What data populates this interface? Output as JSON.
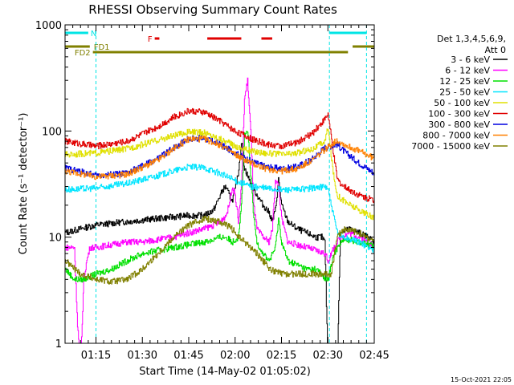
{
  "chart_data": {
    "type": "line",
    "title": "RHESSI Observing Summary Count Rates",
    "xlabel": "Start Time (14-May-02 01:05:02)",
    "ylabel": "Count Rate (s⁻¹ detector⁻¹)",
    "ylog": true,
    "ylim": [
      1,
      1000
    ],
    "xlim_minutes": [
      0,
      100
    ],
    "x_ticks": [
      {
        "label": "01:15",
        "min": 10
      },
      {
        "label": "01:30",
        "min": 25
      },
      {
        "label": "01:45",
        "min": 40
      },
      {
        "label": "02:00",
        "min": 55
      },
      {
        "label": "02:15",
        "min": 70
      },
      {
        "label": "02:30",
        "min": 85
      },
      {
        "label": "02:45",
        "min": 100
      }
    ],
    "y_ticks": [
      {
        "label": "1",
        "v": 1
      },
      {
        "label": "10",
        "v": 10
      },
      {
        "label": "100",
        "v": 100
      },
      {
        "label": "1000",
        "v": 1000
      }
    ],
    "legend_header": [
      "Det 1,3,4,5,6,9,",
      "Att 0"
    ],
    "timestamp": "15-Oct-2021 22:05",
    "night_markers": [
      10,
      85.5,
      97.5
    ],
    "flags": [
      {
        "label": "N",
        "color": "#00e5e5",
        "segments": [
          [
            0,
            7.5
          ],
          [
            85.5,
            97.5
          ]
        ]
      },
      {
        "label": "F",
        "color": "#e00000",
        "segments": [
          [
            29,
            30.5
          ],
          [
            46,
            57
          ],
          [
            63.5,
            67
          ]
        ]
      },
      {
        "label": "FD1",
        "color": "#808000",
        "segments": [
          [
            0,
            8
          ],
          [
            93,
            100
          ]
        ]
      },
      {
        "label": "FD2",
        "color": "#808000",
        "segments": [
          [
            9,
            91.5
          ]
        ]
      }
    ],
    "series": [
      {
        "name": "3 - 6 keV",
        "color": "#000000",
        "points": [
          [
            0,
            11
          ],
          [
            5,
            12
          ],
          [
            10,
            13
          ],
          [
            15,
            13.5
          ],
          [
            20,
            14
          ],
          [
            25,
            14.5
          ],
          [
            30,
            15
          ],
          [
            35,
            15.5
          ],
          [
            40,
            16
          ],
          [
            45,
            16
          ],
          [
            48,
            18
          ],
          [
            51,
            28
          ],
          [
            52,
            30
          ],
          [
            53,
            25
          ],
          [
            54,
            22
          ],
          [
            55,
            28
          ],
          [
            56,
            40
          ],
          [
            57,
            80
          ],
          [
            58,
            45
          ],
          [
            60,
            32
          ],
          [
            62,
            25
          ],
          [
            64,
            20
          ],
          [
            66,
            17
          ],
          [
            67,
            14
          ],
          [
            68,
            18
          ],
          [
            69,
            35
          ],
          [
            70,
            20
          ],
          [
            72,
            14
          ],
          [
            75,
            12
          ],
          [
            78,
            11
          ],
          [
            81,
            10
          ],
          [
            83,
            10
          ],
          [
            84,
            9
          ],
          [
            85,
            0.6
          ],
          [
            86,
            0.5
          ],
          [
            87,
            1.0
          ],
          [
            88,
            0.6
          ],
          [
            89,
            11
          ],
          [
            92,
            12
          ],
          [
            95,
            11
          ],
          [
            98,
            10
          ],
          [
            100,
            9
          ]
        ]
      },
      {
        "name": "6 - 12 keV",
        "color": "#ff00ff",
        "points": [
          [
            0,
            8
          ],
          [
            3,
            8
          ],
          [
            4,
            1.5
          ],
          [
            5,
            0.6
          ],
          [
            6,
            4
          ],
          [
            7,
            6
          ],
          [
            8,
            8
          ],
          [
            10,
            8
          ],
          [
            15,
            8.5
          ],
          [
            20,
            9
          ],
          [
            25,
            9
          ],
          [
            30,
            9.5
          ],
          [
            35,
            10
          ],
          [
            40,
            11
          ],
          [
            45,
            12
          ],
          [
            48,
            13
          ],
          [
            50,
            14
          ],
          [
            52,
            16
          ],
          [
            53,
            20
          ],
          [
            54,
            30
          ],
          [
            55,
            25
          ],
          [
            56,
            14
          ],
          [
            57,
            30
          ],
          [
            58,
            200
          ],
          [
            59,
            300
          ],
          [
            60,
            100
          ],
          [
            61,
            20
          ],
          [
            62,
            12
          ],
          [
            64,
            10
          ],
          [
            66,
            9
          ],
          [
            67,
            12
          ],
          [
            68,
            35
          ],
          [
            69,
            30
          ],
          [
            70,
            15
          ],
          [
            72,
            9
          ],
          [
            75,
            8.5
          ],
          [
            78,
            8
          ],
          [
            81,
            7.5
          ],
          [
            84,
            7
          ],
          [
            85,
            6
          ],
          [
            87,
            8
          ],
          [
            89,
            10
          ],
          [
            92,
            11
          ],
          [
            95,
            10
          ],
          [
            98,
            9
          ],
          [
            100,
            8
          ]
        ]
      },
      {
        "name": "12 - 25 keV",
        "color": "#00e000",
        "points": [
          [
            0,
            5
          ],
          [
            3,
            4
          ],
          [
            6,
            4
          ],
          [
            10,
            4.5
          ],
          [
            15,
            5
          ],
          [
            20,
            6
          ],
          [
            25,
            7
          ],
          [
            30,
            7.5
          ],
          [
            35,
            8
          ],
          [
            40,
            8.5
          ],
          [
            45,
            9
          ],
          [
            48,
            9.5
          ],
          [
            50,
            10
          ],
          [
            52,
            10
          ],
          [
            54,
            9
          ],
          [
            56,
            10
          ],
          [
            57,
            20
          ],
          [
            58,
            90
          ],
          [
            59,
            100
          ],
          [
            60,
            40
          ],
          [
            61,
            15
          ],
          [
            62,
            9
          ],
          [
            64,
            7
          ],
          [
            66,
            6
          ],
          [
            68,
            8
          ],
          [
            69,
            15
          ],
          [
            70,
            9
          ],
          [
            72,
            6
          ],
          [
            75,
            5.5
          ],
          [
            78,
            5
          ],
          [
            81,
            5
          ],
          [
            83,
            4.5
          ],
          [
            84,
            4
          ],
          [
            85,
            4
          ],
          [
            87,
            7
          ],
          [
            89,
            9
          ],
          [
            92,
            9.5
          ],
          [
            95,
            9
          ],
          [
            98,
            8.5
          ],
          [
            100,
            8
          ]
        ]
      },
      {
        "name": "25 - 50 keV",
        "color": "#00e5ff",
        "points": [
          [
            0,
            28
          ],
          [
            10,
            29
          ],
          [
            20,
            32
          ],
          [
            30,
            38
          ],
          [
            35,
            42
          ],
          [
            40,
            46
          ],
          [
            45,
            45
          ],
          [
            50,
            40
          ],
          [
            55,
            34
          ],
          [
            60,
            30
          ],
          [
            65,
            29
          ],
          [
            70,
            28
          ],
          [
            75,
            28
          ],
          [
            80,
            29
          ],
          [
            84,
            30
          ],
          [
            85,
            29
          ],
          [
            86,
            20
          ],
          [
            87,
            15
          ],
          [
            88,
            11
          ],
          [
            90,
            10
          ],
          [
            95,
            9
          ],
          [
            100,
            7.5
          ]
        ]
      },
      {
        "name": "50 - 100 keV",
        "color": "#e0e000",
        "points": [
          [
            0,
            60
          ],
          [
            10,
            62
          ],
          [
            20,
            68
          ],
          [
            30,
            82
          ],
          [
            35,
            90
          ],
          [
            40,
            98
          ],
          [
            45,
            96
          ],
          [
            50,
            85
          ],
          [
            55,
            72
          ],
          [
            60,
            65
          ],
          [
            65,
            62
          ],
          [
            70,
            60
          ],
          [
            75,
            62
          ],
          [
            80,
            68
          ],
          [
            84,
            80
          ],
          [
            85,
            110
          ],
          [
            86,
            60
          ],
          [
            87,
            35
          ],
          [
            88,
            25
          ],
          [
            90,
            22
          ],
          [
            95,
            18
          ],
          [
            100,
            15
          ]
        ]
      },
      {
        "name": "100 - 300 keV",
        "color": "#e00000",
        "points": [
          [
            0,
            80
          ],
          [
            10,
            72
          ],
          [
            20,
            80
          ],
          [
            30,
            110
          ],
          [
            35,
            135
          ],
          [
            40,
            155
          ],
          [
            45,
            150
          ],
          [
            50,
            125
          ],
          [
            55,
            100
          ],
          [
            60,
            85
          ],
          [
            65,
            75
          ],
          [
            70,
            72
          ],
          [
            75,
            78
          ],
          [
            80,
            95
          ],
          [
            84,
            130
          ],
          [
            85,
            145
          ],
          [
            86,
            90
          ],
          [
            87,
            55
          ],
          [
            88,
            35
          ],
          [
            90,
            30
          ],
          [
            95,
            25
          ],
          [
            100,
            22
          ]
        ]
      },
      {
        "name": "300 - 800 keV",
        "color": "#0000e0",
        "points": [
          [
            0,
            45
          ],
          [
            10,
            38
          ],
          [
            20,
            40
          ],
          [
            30,
            55
          ],
          [
            35,
            70
          ],
          [
            40,
            85
          ],
          [
            45,
            85
          ],
          [
            50,
            75
          ],
          [
            55,
            62
          ],
          [
            60,
            52
          ],
          [
            65,
            46
          ],
          [
            70,
            44
          ],
          [
            75,
            46
          ],
          [
            80,
            55
          ],
          [
            84,
            70
          ],
          [
            88,
            75
          ],
          [
            90,
            65
          ],
          [
            95,
            50
          ],
          [
            100,
            40
          ]
        ]
      },
      {
        "name": "800 - 7000 keV",
        "color": "#ff8000",
        "points": [
          [
            0,
            42
          ],
          [
            10,
            37
          ],
          [
            20,
            39
          ],
          [
            30,
            53
          ],
          [
            35,
            68
          ],
          [
            40,
            84
          ],
          [
            45,
            84
          ],
          [
            50,
            74
          ],
          [
            55,
            60
          ],
          [
            60,
            50
          ],
          [
            65,
            44
          ],
          [
            70,
            42
          ],
          [
            75,
            44
          ],
          [
            80,
            53
          ],
          [
            84,
            67
          ],
          [
            88,
            82
          ],
          [
            90,
            75
          ],
          [
            95,
            65
          ],
          [
            100,
            55
          ]
        ]
      },
      {
        "name": "7000 - 15000 keV",
        "color": "#808000",
        "points": [
          [
            0,
            6
          ],
          [
            5,
            4.5
          ],
          [
            10,
            4
          ],
          [
            15,
            3.8
          ],
          [
            20,
            4
          ],
          [
            25,
            5
          ],
          [
            30,
            7
          ],
          [
            35,
            10
          ],
          [
            40,
            13
          ],
          [
            45,
            15
          ],
          [
            50,
            14
          ],
          [
            52,
            13
          ],
          [
            54,
            12
          ],
          [
            56,
            10
          ],
          [
            58,
            9
          ],
          [
            60,
            8
          ],
          [
            62,
            7
          ],
          [
            64,
            6
          ],
          [
            66,
            5
          ],
          [
            70,
            4.5
          ],
          [
            75,
            4.5
          ],
          [
            80,
            4.5
          ],
          [
            84,
            4.5
          ],
          [
            86,
            4.5
          ],
          [
            88,
            10
          ],
          [
            90,
            12
          ],
          [
            95,
            11
          ],
          [
            100,
            9
          ]
        ]
      }
    ]
  }
}
